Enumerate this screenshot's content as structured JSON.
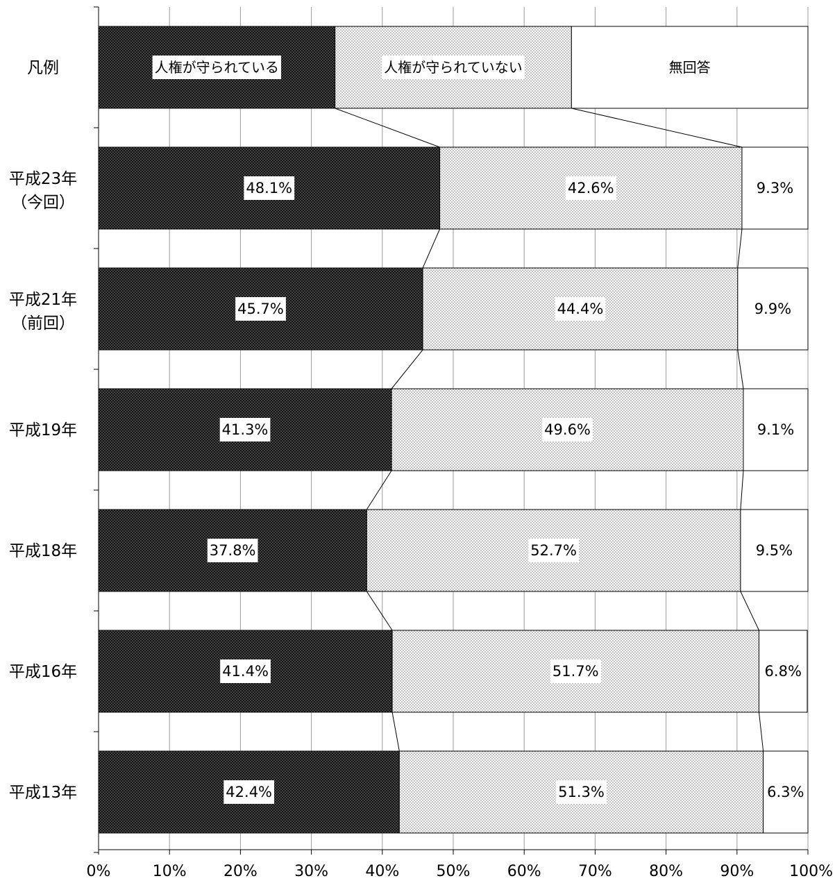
{
  "chart_data": {
    "type": "bar",
    "orientation": "horizontal",
    "stacked": true,
    "percent_stacked": true,
    "legend_row_label": "凡例",
    "legend_labels": [
      "人権が守られている",
      "人権が守られていない",
      "無回答"
    ],
    "categories": [
      "平成23年（今回）",
      "平成21年（前回）",
      "平成19年",
      "平成18年",
      "平成16年",
      "平成13年"
    ],
    "category_lines": [
      [
        "平成23年",
        "（今回）"
      ],
      [
        "平成21年",
        "（前回）"
      ],
      [
        "平成19年"
      ],
      [
        "平成18年"
      ],
      [
        "平成16年"
      ],
      [
        "平成13年"
      ]
    ],
    "series": [
      {
        "name": "人権が守られている",
        "values": [
          48.1,
          45.7,
          41.3,
          37.8,
          41.4,
          42.4
        ],
        "pattern": "dark-dots",
        "color": "#1a1a1a"
      },
      {
        "name": "人権が守られていない",
        "values": [
          42.6,
          44.4,
          49.6,
          52.7,
          51.7,
          51.3
        ],
        "pattern": "light-dots",
        "color": "#d9d9d9"
      },
      {
        "name": "無回答",
        "values": [
          9.3,
          9.9,
          9.1,
          9.5,
          6.8,
          6.3
        ],
        "pattern": "none",
        "color": "#ffffff"
      }
    ],
    "data_labels": [
      [
        "48.1%",
        "42.6%",
        "9.3%"
      ],
      [
        "45.7%",
        "44.4%",
        "9.9%"
      ],
      [
        "41.3%",
        "49.6%",
        "9.1%"
      ],
      [
        "37.8%",
        "52.7%",
        "9.5%"
      ],
      [
        "41.4%",
        "51.7%",
        "6.8%"
      ],
      [
        "42.4%",
        "51.3%",
        "6.3%"
      ]
    ],
    "x_ticks": [
      "0%",
      "10%",
      "20%",
      "30%",
      "40%",
      "50%",
      "60%",
      "70%",
      "80%",
      "90%",
      "100%"
    ],
    "xlim": [
      0,
      100
    ],
    "grid": true,
    "series_lines": true
  }
}
